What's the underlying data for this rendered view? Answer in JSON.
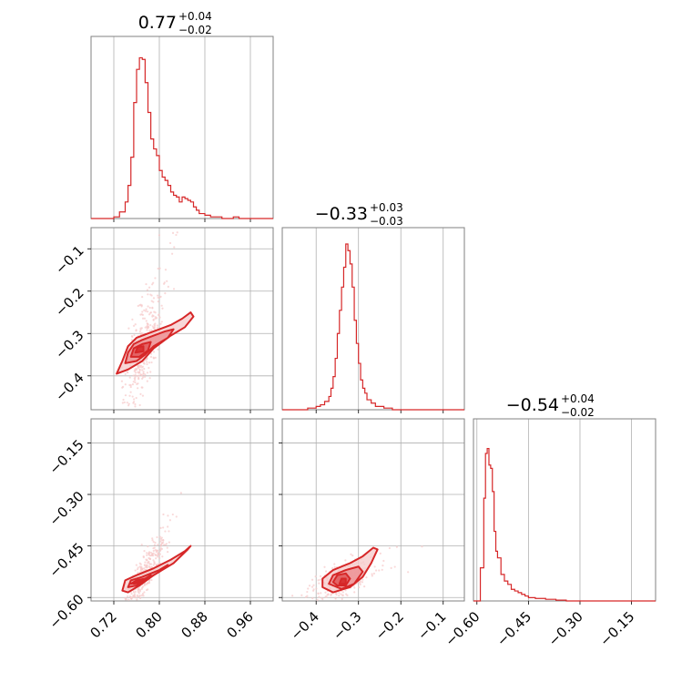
{
  "chart_data": {
    "type": "corner",
    "color": "#d62728",
    "light_color": "#f6c9c9",
    "mid_color": "#ec8f91",
    "dark_color": "#e05558",
    "grid": true,
    "parameters": [
      {
        "range": [
          0.68,
          1.0
        ],
        "ticks": [
          0.72,
          0.8,
          0.88,
          0.96
        ],
        "tick_labels": [
          "0.72",
          "0.80",
          "0.88",
          "0.96"
        ],
        "title": {
          "value": "0.77",
          "plus": "+0.04",
          "minus": "−0.02"
        }
      },
      {
        "range": [
          -0.48,
          -0.05
        ],
        "ticks": [
          -0.4,
          -0.3,
          -0.2,
          -0.1
        ],
        "tick_labels": [
          "−0.4",
          "−0.3",
          "−0.2",
          "−0.1"
        ],
        "title": {
          "value": "−0.33",
          "plus": "+0.03",
          "minus": "−0.03"
        }
      },
      {
        "range": [
          -0.61,
          -0.08
        ],
        "ticks": [
          -0.6,
          -0.45,
          -0.3,
          -0.15
        ],
        "tick_labels": [
          "−0.60",
          "−0.45",
          "−0.30",
          "−0.15"
        ],
        "title": {
          "value": "−0.54",
          "plus": "+0.04",
          "minus": "−0.02"
        }
      }
    ],
    "histograms": [
      {
        "bins": [
          [
            0.68,
            0.0
          ],
          [
            0.72,
            0.01
          ],
          [
            0.73,
            0.04
          ],
          [
            0.74,
            0.1
          ],
          [
            0.745,
            0.2
          ],
          [
            0.75,
            0.37
          ],
          [
            0.755,
            0.7
          ],
          [
            0.76,
            0.9
          ],
          [
            0.765,
            0.97
          ],
          [
            0.77,
            0.96
          ],
          [
            0.775,
            0.82
          ],
          [
            0.78,
            0.64
          ],
          [
            0.785,
            0.48
          ],
          [
            0.79,
            0.42
          ],
          [
            0.795,
            0.38
          ],
          [
            0.8,
            0.29
          ],
          [
            0.805,
            0.25
          ],
          [
            0.81,
            0.23
          ],
          [
            0.815,
            0.2
          ],
          [
            0.82,
            0.16
          ],
          [
            0.825,
            0.14
          ],
          [
            0.83,
            0.13
          ],
          [
            0.835,
            0.1
          ],
          [
            0.84,
            0.13
          ],
          [
            0.845,
            0.12
          ],
          [
            0.85,
            0.11
          ],
          [
            0.855,
            0.1
          ],
          [
            0.86,
            0.07
          ],
          [
            0.865,
            0.05
          ],
          [
            0.87,
            0.03
          ],
          [
            0.88,
            0.02
          ],
          [
            0.89,
            0.01
          ],
          [
            0.9,
            0.01
          ],
          [
            0.91,
            0.0
          ],
          [
            0.93,
            0.01
          ],
          [
            0.94,
            0.0
          ],
          [
            1.0,
            0.0
          ]
        ]
      },
      {
        "bins": [
          [
            -0.48,
            0.0
          ],
          [
            -0.42,
            0.01
          ],
          [
            -0.4,
            0.02
          ],
          [
            -0.39,
            0.03
          ],
          [
            -0.38,
            0.05
          ],
          [
            -0.37,
            0.08
          ],
          [
            -0.365,
            0.13
          ],
          [
            -0.36,
            0.2
          ],
          [
            -0.355,
            0.31
          ],
          [
            -0.35,
            0.46
          ],
          [
            -0.345,
            0.6
          ],
          [
            -0.34,
            0.74
          ],
          [
            -0.335,
            0.86
          ],
          [
            -0.33,
            1.0
          ],
          [
            -0.325,
            0.96
          ],
          [
            -0.32,
            0.88
          ],
          [
            -0.315,
            0.74
          ],
          [
            -0.31,
            0.54
          ],
          [
            -0.305,
            0.4
          ],
          [
            -0.3,
            0.28
          ],
          [
            -0.295,
            0.18
          ],
          [
            -0.29,
            0.13
          ],
          [
            -0.285,
            0.1
          ],
          [
            -0.28,
            0.06
          ],
          [
            -0.27,
            0.04
          ],
          [
            -0.26,
            0.02
          ],
          [
            -0.24,
            0.01
          ],
          [
            -0.22,
            0.0
          ],
          [
            -0.05,
            0.0
          ]
        ]
      },
      {
        "bins": [
          [
            -0.61,
            0.0
          ],
          [
            -0.59,
            0.2
          ],
          [
            -0.58,
            0.62
          ],
          [
            -0.575,
            0.89
          ],
          [
            -0.57,
            0.92
          ],
          [
            -0.565,
            0.82
          ],
          [
            -0.56,
            0.8
          ],
          [
            -0.555,
            0.66
          ],
          [
            -0.55,
            0.42
          ],
          [
            -0.545,
            0.3
          ],
          [
            -0.54,
            0.26
          ],
          [
            -0.53,
            0.16
          ],
          [
            -0.52,
            0.12
          ],
          [
            -0.51,
            0.1
          ],
          [
            -0.5,
            0.07
          ],
          [
            -0.49,
            0.06
          ],
          [
            -0.48,
            0.05
          ],
          [
            -0.47,
            0.04
          ],
          [
            -0.46,
            0.03
          ],
          [
            -0.45,
            0.02
          ],
          [
            -0.43,
            0.015
          ],
          [
            -0.4,
            0.01
          ],
          [
            -0.37,
            0.005
          ],
          [
            -0.34,
            0.0
          ],
          [
            -0.08,
            0.0
          ]
        ]
      }
    ],
    "joint": [
      {
        "row": 1,
        "col": 0,
        "samples": {
          "center": [
            0.77,
            -0.335
          ],
          "sd_along": 0.03,
          "sd_perp": 0.02,
          "slope": 2.1
        },
        "contours": [
          [
            [
              0.725,
              -0.395
            ],
            [
              0.735,
              -0.365
            ],
            [
              0.745,
              -0.33
            ],
            [
              0.76,
              -0.31
            ],
            [
              0.79,
              -0.295
            ],
            [
              0.82,
              -0.28
            ],
            [
              0.84,
              -0.265
            ],
            [
              0.855,
              -0.25
            ],
            [
              0.86,
              -0.26
            ],
            [
              0.845,
              -0.285
            ],
            [
              0.82,
              -0.305
            ],
            [
              0.79,
              -0.335
            ],
            [
              0.77,
              -0.365
            ],
            [
              0.745,
              -0.385
            ]
          ],
          [
            [
              0.74,
              -0.37
            ],
            [
              0.745,
              -0.345
            ],
            [
              0.755,
              -0.325
            ],
            [
              0.77,
              -0.315
            ],
            [
              0.79,
              -0.305
            ],
            [
              0.81,
              -0.295
            ],
            [
              0.825,
              -0.29
            ],
            [
              0.815,
              -0.31
            ],
            [
              0.79,
              -0.33
            ],
            [
              0.775,
              -0.35
            ],
            [
              0.76,
              -0.365
            ]
          ],
          [
            [
              0.75,
              -0.355
            ],
            [
              0.755,
              -0.335
            ],
            [
              0.77,
              -0.325
            ],
            [
              0.785,
              -0.32
            ],
            [
              0.78,
              -0.34
            ],
            [
              0.765,
              -0.355
            ]
          ],
          [
            [
              0.758,
              -0.345
            ],
            [
              0.762,
              -0.332
            ],
            [
              0.772,
              -0.33
            ],
            [
              0.772,
              -0.342
            ]
          ]
        ]
      },
      {
        "row": 2,
        "col": 0,
        "samples": {
          "center": [
            0.77,
            -0.54
          ],
          "sd_along": 0.03,
          "sd_perp": 0.012,
          "slope": 1.6
        },
        "contours": [
          [
            [
              0.735,
              -0.58
            ],
            [
              0.74,
              -0.55
            ],
            [
              0.76,
              -0.535
            ],
            [
              0.79,
              -0.515
            ],
            [
              0.82,
              -0.49
            ],
            [
              0.845,
              -0.465
            ],
            [
              0.855,
              -0.45
            ],
            [
              0.85,
              -0.46
            ],
            [
              0.825,
              -0.5
            ],
            [
              0.79,
              -0.535
            ],
            [
              0.765,
              -0.565
            ],
            [
              0.745,
              -0.585
            ]
          ],
          [
            [
              0.745,
              -0.57
            ],
            [
              0.75,
              -0.55
            ],
            [
              0.77,
              -0.54
            ],
            [
              0.8,
              -0.52
            ],
            [
              0.815,
              -0.505
            ],
            [
              0.8,
              -0.525
            ],
            [
              0.775,
              -0.55
            ],
            [
              0.76,
              -0.565
            ]
          ],
          [
            [
              0.75,
              -0.56
            ],
            [
              0.76,
              -0.55
            ],
            [
              0.775,
              -0.545
            ],
            [
              0.785,
              -0.535
            ],
            [
              0.77,
              -0.555
            ]
          ],
          [
            [
              0.755,
              -0.56
            ],
            [
              0.765,
              -0.552
            ],
            [
              0.772,
              -0.548
            ],
            [
              0.765,
              -0.558
            ]
          ]
        ]
      },
      {
        "row": 2,
        "col": 1,
        "samples": {
          "center": [
            -0.335,
            -0.545
          ],
          "sd_along": 0.03,
          "sd_perp": 0.02,
          "slope": 0.5
        },
        "contours": [
          [
            [
              -0.385,
              -0.57
            ],
            [
              -0.385,
              -0.545
            ],
            [
              -0.36,
              -0.52
            ],
            [
              -0.32,
              -0.5
            ],
            [
              -0.29,
              -0.48
            ],
            [
              -0.265,
              -0.455
            ],
            [
              -0.255,
              -0.46
            ],
            [
              -0.27,
              -0.5
            ],
            [
              -0.29,
              -0.54
            ],
            [
              -0.32,
              -0.57
            ],
            [
              -0.36,
              -0.585
            ]
          ],
          [
            [
              -0.37,
              -0.56
            ],
            [
              -0.36,
              -0.535
            ],
            [
              -0.33,
              -0.52
            ],
            [
              -0.3,
              -0.51
            ],
            [
              -0.29,
              -0.525
            ],
            [
              -0.31,
              -0.56
            ],
            [
              -0.34,
              -0.575
            ]
          ],
          [
            [
              -0.36,
              -0.555
            ],
            [
              -0.35,
              -0.535
            ],
            [
              -0.33,
              -0.53
            ],
            [
              -0.32,
              -0.545
            ],
            [
              -0.33,
              -0.565
            ],
            [
              -0.35,
              -0.565
            ]
          ],
          [
            [
              -0.345,
              -0.56
            ],
            [
              -0.34,
              -0.545
            ],
            [
              -0.33,
              -0.545
            ],
            [
              -0.33,
              -0.56
            ]
          ]
        ]
      }
    ]
  }
}
